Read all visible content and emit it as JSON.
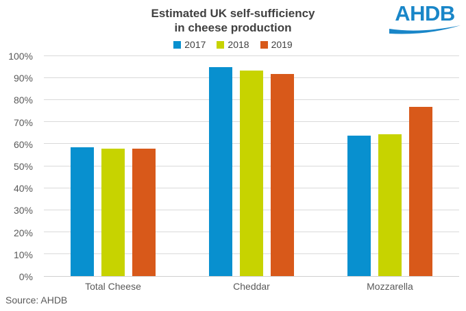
{
  "header": {
    "title_line1": "Estimated UK self-sufficiency",
    "title_line2": "in cheese production",
    "logo_text": "AHDB"
  },
  "source": "Source: AHDB",
  "colors": {
    "series_2017": "#0890CF",
    "series_2018": "#C7D300",
    "series_2019": "#D8591A",
    "logo_blue": "#1986C8",
    "title_text": "#404040",
    "axis_text": "#595959",
    "gridline": "#D9D9D9"
  },
  "chart_data": {
    "type": "bar",
    "title": "Estimated UK self-sufficiency in cheese production",
    "categories": [
      "Total Cheese",
      "Cheddar",
      "Mozzarella"
    ],
    "series": [
      {
        "name": "2017",
        "color": "#0890CF",
        "values": [
          58.5,
          95,
          64
        ]
      },
      {
        "name": "2018",
        "color": "#C7D300",
        "values": [
          58,
          93.5,
          64.5
        ]
      },
      {
        "name": "2019",
        "color": "#D8591A",
        "values": [
          58,
          92,
          77
        ]
      }
    ],
    "xlabel": "",
    "ylabel": "",
    "ylim": [
      0,
      100
    ],
    "yticks": [
      "0%",
      "10%",
      "20%",
      "30%",
      "40%",
      "50%",
      "60%",
      "70%",
      "80%",
      "90%",
      "100%"
    ],
    "grid": true,
    "legend_position": "top-center"
  }
}
